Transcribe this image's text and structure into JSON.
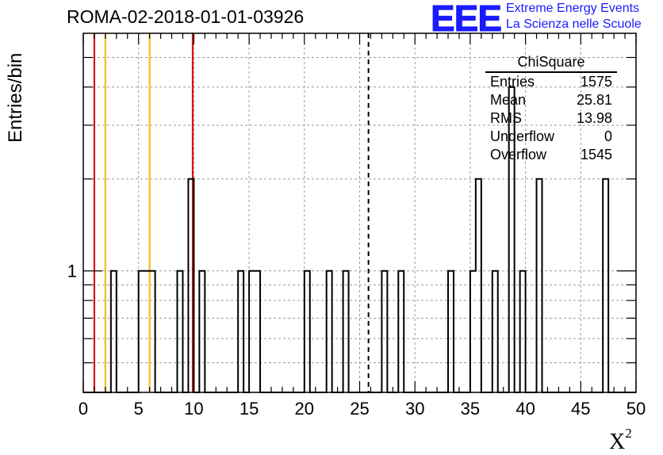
{
  "title": "ROMA-02-2018-01-01-03926",
  "logo": {
    "mark": "EEE",
    "line1": "Extreme Energy Events",
    "line2": "La Scienza nelle Scuole",
    "color": "#1a1aff"
  },
  "stats_box": {
    "title": "ChiSquare",
    "rows": [
      {
        "label": "Entries",
        "value": "1575"
      },
      {
        "label": "Mean",
        "value": "25.81"
      },
      {
        "label": "RMS",
        "value": "13.98"
      },
      {
        "label": "Underflow",
        "value": "0"
      },
      {
        "label": "Overflow",
        "value": "1545"
      }
    ]
  },
  "chart_data": {
    "type": "histogram",
    "title": "ROMA-02-2018-01-01-03926",
    "xlabel": "X",
    "xlabel_sup": "2",
    "ylabel": "Entries/bin",
    "xlim": [
      0,
      50
    ],
    "ylim": [
      0.4,
      6
    ],
    "y_log": true,
    "grid": true,
    "x_ticks": [
      "0",
      "5",
      "10",
      "15",
      "20",
      "25",
      "30",
      "35",
      "40",
      "45",
      "50"
    ],
    "y_tick_labels": [
      {
        "value": 1,
        "label": "1"
      }
    ],
    "bin_width": 0.5,
    "bins": [
      {
        "x": 2.5,
        "count": 1
      },
      {
        "x": 5.0,
        "count": 1
      },
      {
        "x": 5.5,
        "count": 1
      },
      {
        "x": 6.0,
        "count": 1
      },
      {
        "x": 8.5,
        "count": 1
      },
      {
        "x": 9.5,
        "count": 2
      },
      {
        "x": 10.5,
        "count": 1
      },
      {
        "x": 14.0,
        "count": 1
      },
      {
        "x": 15.0,
        "count": 1
      },
      {
        "x": 15.5,
        "count": 1
      },
      {
        "x": 20.0,
        "count": 1
      },
      {
        "x": 22.0,
        "count": 1
      },
      {
        "x": 23.5,
        "count": 1
      },
      {
        "x": 27.0,
        "count": 1
      },
      {
        "x": 28.5,
        "count": 1
      },
      {
        "x": 33.0,
        "count": 1
      },
      {
        "x": 35.0,
        "count": 1
      },
      {
        "x": 35.5,
        "count": 2
      },
      {
        "x": 37.0,
        "count": 1
      },
      {
        "x": 38.5,
        "count": 4
      },
      {
        "x": 39.5,
        "count": 1
      },
      {
        "x": 41.0,
        "count": 2
      },
      {
        "x": 47.0,
        "count": 2
      }
    ],
    "reference_lines": [
      {
        "x": 1.0,
        "color": "#dd1111",
        "style": "solid"
      },
      {
        "x": 2.0,
        "color": "#f0c020",
        "style": "solid"
      },
      {
        "x": 6.0,
        "color": "#f0c020",
        "style": "solid"
      },
      {
        "x": 9.9,
        "color": "#dd1111",
        "style": "solid"
      },
      {
        "x": 25.8,
        "color": "#000000",
        "style": "dashed"
      }
    ]
  }
}
